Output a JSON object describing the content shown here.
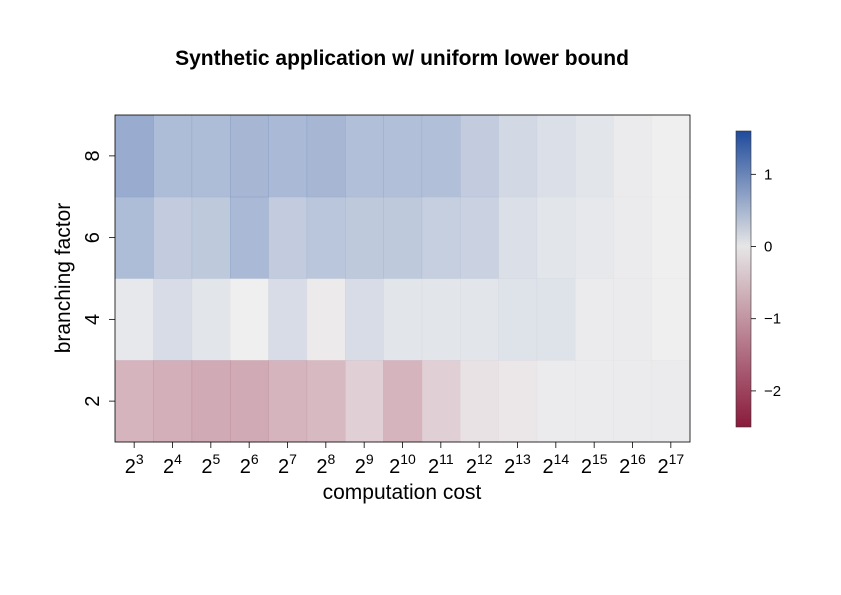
{
  "chart_data": {
    "type": "heatmap",
    "title": "Synthetic application w/ uniform lower bound",
    "xlabel": "computation cost",
    "ylabel": "branching factor",
    "x_categories": [
      {
        "base": "2",
        "exp": "3"
      },
      {
        "base": "2",
        "exp": "4"
      },
      {
        "base": "2",
        "exp": "5"
      },
      {
        "base": "2",
        "exp": "6"
      },
      {
        "base": "2",
        "exp": "7"
      },
      {
        "base": "2",
        "exp": "8"
      },
      {
        "base": "2",
        "exp": "9"
      },
      {
        "base": "2",
        "exp": "10"
      },
      {
        "base": "2",
        "exp": "11"
      },
      {
        "base": "2",
        "exp": "12"
      },
      {
        "base": "2",
        "exp": "13"
      },
      {
        "base": "2",
        "exp": "14"
      },
      {
        "base": "2",
        "exp": "15"
      },
      {
        "base": "2",
        "exp": "16"
      },
      {
        "base": "2",
        "exp": "17"
      }
    ],
    "y_categories": [
      "8",
      "6",
      "4",
      "2"
    ],
    "values": [
      [
        1.05,
        0.8,
        0.8,
        0.9,
        0.85,
        0.9,
        0.75,
        0.75,
        0.75,
        0.55,
        0.35,
        0.25,
        0.15,
        0.05,
        0.0
      ],
      [
        0.8,
        0.55,
        0.6,
        0.85,
        0.55,
        0.65,
        0.6,
        0.6,
        0.5,
        0.45,
        0.25,
        0.15,
        0.1,
        0.05,
        0.0
      ],
      [
        0.1,
        0.3,
        0.15,
        0.0,
        0.3,
        -0.1,
        0.3,
        0.15,
        0.15,
        0.15,
        0.2,
        0.2,
        0.05,
        0.05,
        0.0
      ],
      [
        -1.1,
        -1.2,
        -1.3,
        -1.3,
        -1.1,
        -1.0,
        -0.6,
        -1.1,
        -0.6,
        -0.25,
        -0.15,
        0.05,
        0.05,
        0.05,
        0.05
      ]
    ],
    "colorbar": {
      "min": -2.5,
      "max": 1.6,
      "ticks": [
        1,
        0,
        -1,
        -2
      ],
      "tick_labels": [
        "1",
        "0",
        "−1",
        "−2"
      ],
      "colors": {
        "high": "#1f4b9c",
        "mid": "#e6e6e6",
        "low": "#8b1a3c"
      }
    },
    "cell_alpha": 0.65
  }
}
